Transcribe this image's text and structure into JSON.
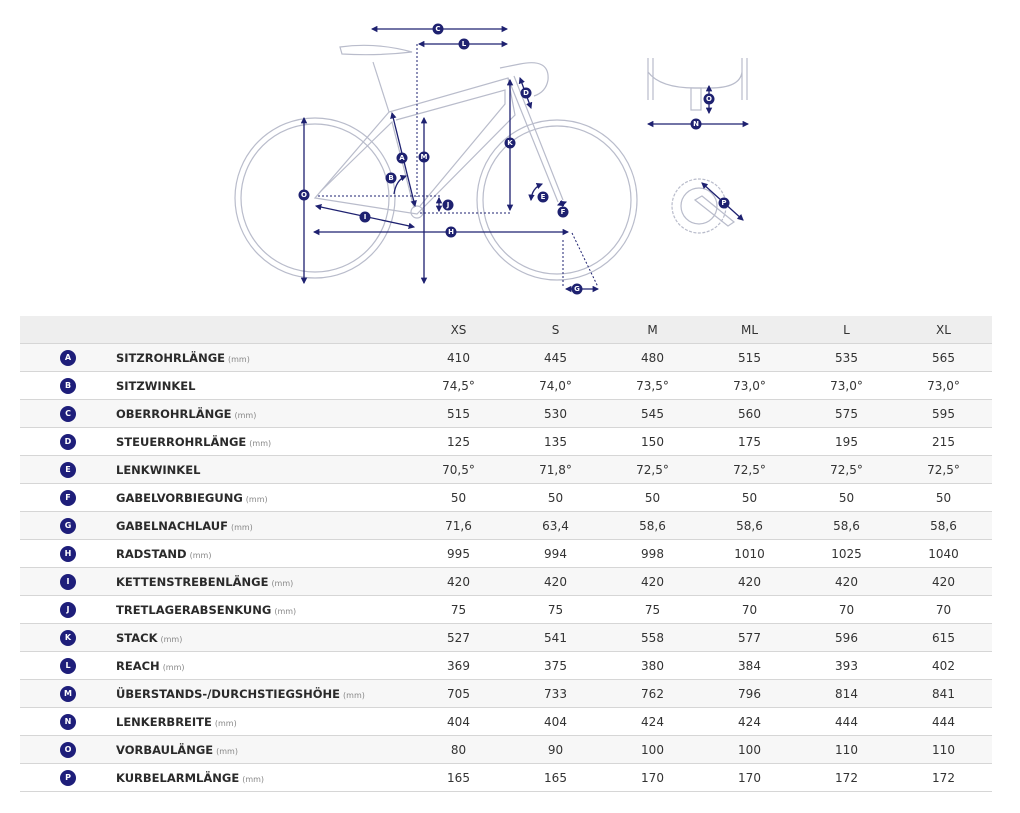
{
  "diagram": {
    "labels": {
      "A": "A",
      "B": "B",
      "C": "C",
      "D": "D",
      "E": "E",
      "F": "F",
      "G": "G",
      "H": "H",
      "I": "I",
      "J": "J",
      "K": "K",
      "L": "L",
      "M": "M",
      "N": "N",
      "O": "O",
      "O2": "O",
      "P": "P"
    }
  },
  "table": {
    "sizes": [
      "XS",
      "S",
      "M",
      "ML",
      "L",
      "XL"
    ],
    "rows": [
      {
        "letter": "A",
        "name": "SITZROHRLÄNGE",
        "unit": "(mm)",
        "values": [
          "410",
          "445",
          "480",
          "515",
          "535",
          "565"
        ]
      },
      {
        "letter": "B",
        "name": "SITZWINKEL",
        "unit": "",
        "values": [
          "74,5°",
          "74,0°",
          "73,5°",
          "73,0°",
          "73,0°",
          "73,0°"
        ]
      },
      {
        "letter": "C",
        "name": "OBERROHRLÄNGE",
        "unit": "(mm)",
        "values": [
          "515",
          "530",
          "545",
          "560",
          "575",
          "595"
        ]
      },
      {
        "letter": "D",
        "name": "STEUERROHRLÄNGE",
        "unit": "(mm)",
        "values": [
          "125",
          "135",
          "150",
          "175",
          "195",
          "215"
        ]
      },
      {
        "letter": "E",
        "name": "LENKWINKEL",
        "unit": "",
        "values": [
          "70,5°",
          "71,8°",
          "72,5°",
          "72,5°",
          "72,5°",
          "72,5°"
        ]
      },
      {
        "letter": "F",
        "name": "GABELVORBIEGUNG",
        "unit": "(mm)",
        "values": [
          "50",
          "50",
          "50",
          "50",
          "50",
          "50"
        ]
      },
      {
        "letter": "G",
        "name": "GABELNACHLAUF",
        "unit": "(mm)",
        "values": [
          "71,6",
          "63,4",
          "58,6",
          "58,6",
          "58,6",
          "58,6"
        ]
      },
      {
        "letter": "H",
        "name": "RADSTAND",
        "unit": "(mm)",
        "values": [
          "995",
          "994",
          "998",
          "1010",
          "1025",
          "1040"
        ]
      },
      {
        "letter": "I",
        "name": "KETTENSTREBENLÄNGE",
        "unit": "(mm)",
        "values": [
          "420",
          "420",
          "420",
          "420",
          "420",
          "420"
        ]
      },
      {
        "letter": "J",
        "name": "TRETLAGERABSENKUNG",
        "unit": "(mm)",
        "values": [
          "75",
          "75",
          "75",
          "70",
          "70",
          "70"
        ]
      },
      {
        "letter": "K",
        "name": "STACK",
        "unit": "(mm)",
        "values": [
          "527",
          "541",
          "558",
          "577",
          "596",
          "615"
        ]
      },
      {
        "letter": "L",
        "name": "REACH",
        "unit": "(mm)",
        "values": [
          "369",
          "375",
          "380",
          "384",
          "393",
          "402"
        ]
      },
      {
        "letter": "M",
        "name": "ÜBERSTANDS-/DURCHSTIEGSHÖHE",
        "unit": "(mm)",
        "values": [
          "705",
          "733",
          "762",
          "796",
          "814",
          "841"
        ]
      },
      {
        "letter": "N",
        "name": "LENKERBREITE",
        "unit": "(mm)",
        "values": [
          "404",
          "404",
          "424",
          "424",
          "444",
          "444"
        ]
      },
      {
        "letter": "O",
        "name": "VORBAULÄNGE",
        "unit": "(mm)",
        "values": [
          "80",
          "90",
          "100",
          "100",
          "110",
          "110"
        ]
      },
      {
        "letter": "P",
        "name": "KURBELARMLÄNGE",
        "unit": "(mm)",
        "values": [
          "165",
          "165",
          "170",
          "170",
          "172",
          "172"
        ]
      }
    ]
  }
}
